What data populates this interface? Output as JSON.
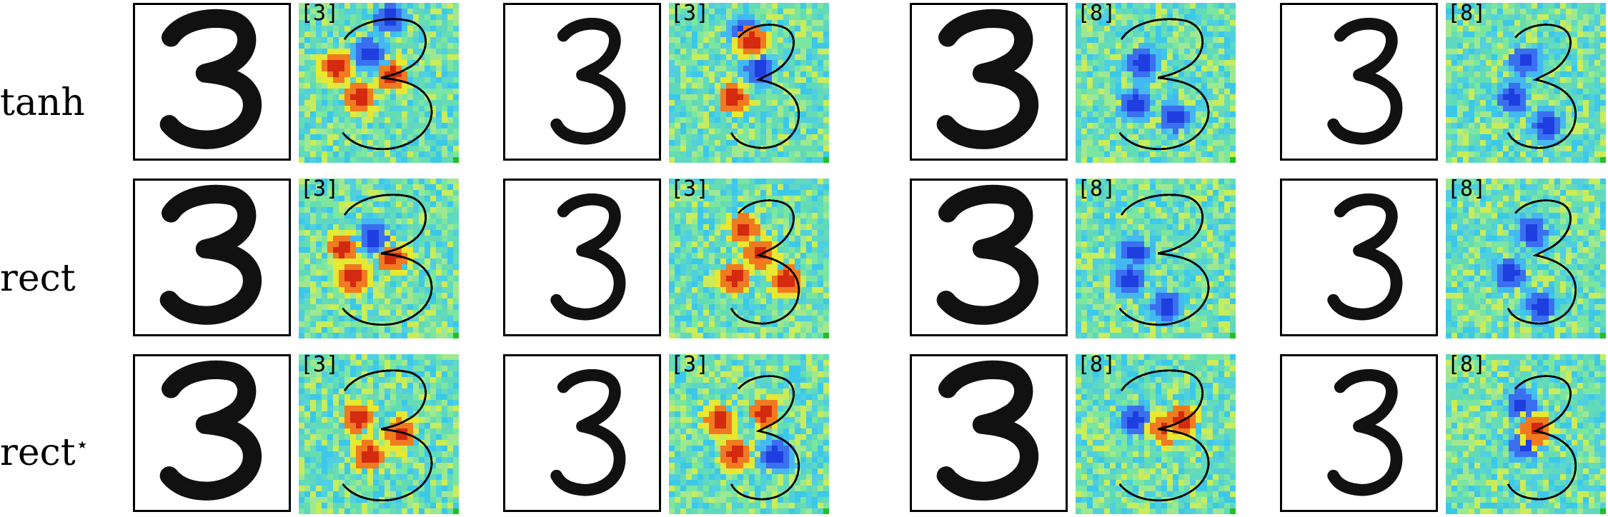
{
  "row_labels": [
    "tanh",
    "rect",
    "rect"
  ],
  "star_mark": "⋆",
  "rows": [
    {
      "name": "tanh",
      "panels": [
        {
          "class": "[3]",
          "stroke": "thick",
          "hot": "red",
          "blobs": [
            [
              0.22,
              0.38,
              "r"
            ],
            [
              0.36,
              0.57,
              "r"
            ],
            [
              0.56,
              0.44,
              "r"
            ],
            [
              0.42,
              0.3,
              "b"
            ],
            [
              0.55,
              0.08,
              "b"
            ]
          ]
        },
        {
          "class": "[3]",
          "stroke": "thin",
          "hot": "red",
          "blobs": [
            [
              0.45,
              0.18,
              "b"
            ],
            [
              0.55,
              0.4,
              "b"
            ],
            [
              0.38,
              0.58,
              "r"
            ],
            [
              0.5,
              0.22,
              "r"
            ]
          ]
        },
        {
          "class": "[8]",
          "stroke": "thick",
          "hot": "blue",
          "blobs": [
            [
              0.4,
              0.36,
              "b"
            ],
            [
              0.36,
              0.62,
              "b"
            ],
            [
              0.6,
              0.7,
              "b"
            ]
          ]
        },
        {
          "class": "[8]",
          "stroke": "thin",
          "hot": "blue",
          "blobs": [
            [
              0.48,
              0.34,
              "b"
            ],
            [
              0.4,
              0.58,
              "b"
            ],
            [
              0.62,
              0.75,
              "b"
            ]
          ]
        }
      ]
    },
    {
      "name": "rect",
      "panels": [
        {
          "class": "[3]",
          "stroke": "thick",
          "hot": "red",
          "blobs": [
            [
              0.26,
              0.42,
              "r"
            ],
            [
              0.56,
              0.48,
              "r"
            ],
            [
              0.32,
              0.6,
              "r"
            ],
            [
              0.45,
              0.35,
              "b"
            ]
          ]
        },
        {
          "class": "[3]",
          "stroke": "thin",
          "hot": "red",
          "blobs": [
            [
              0.45,
              0.3,
              "r"
            ],
            [
              0.55,
              0.45,
              "r"
            ],
            [
              0.4,
              0.6,
              "r"
            ],
            [
              0.72,
              0.62,
              "r"
            ]
          ]
        },
        {
          "class": "[8]",
          "stroke": "thick",
          "hot": "blue",
          "blobs": [
            [
              0.35,
              0.45,
              "b"
            ],
            [
              0.32,
              0.62,
              "b"
            ],
            [
              0.55,
              0.78,
              "b"
            ]
          ]
        },
        {
          "class": "[8]",
          "stroke": "thin",
          "hot": "blue",
          "blobs": [
            [
              0.52,
              0.32,
              "b"
            ],
            [
              0.38,
              0.58,
              "b"
            ],
            [
              0.58,
              0.78,
              "b"
            ]
          ]
        }
      ]
    },
    {
      "name": "rect*",
      "panels": [
        {
          "class": "[3]",
          "stroke": "thick",
          "hot": "red",
          "blobs": [
            [
              0.35,
              0.38,
              "r"
            ],
            [
              0.42,
              0.62,
              "r"
            ],
            [
              0.62,
              0.48,
              "r"
            ]
          ]
        },
        {
          "class": "[3]",
          "stroke": "thin",
          "hot": "red",
          "blobs": [
            [
              0.4,
              0.6,
              "r"
            ],
            [
              0.58,
              0.35,
              "r"
            ],
            [
              0.3,
              0.4,
              "r"
            ],
            [
              0.65,
              0.62,
              "b"
            ]
          ]
        },
        {
          "class": "[8]",
          "stroke": "thick",
          "hot": "blue",
          "blobs": [
            [
              0.35,
              0.4,
              "b"
            ],
            [
              0.55,
              0.45,
              "r"
            ],
            [
              0.65,
              0.4,
              "r"
            ]
          ]
        },
        {
          "class": "[8]",
          "stroke": "thin",
          "hot": "blue",
          "blobs": [
            [
              0.45,
              0.3,
              "b"
            ],
            [
              0.48,
              0.55,
              "b"
            ],
            [
              0.55,
              0.45,
              "r"
            ]
          ]
        }
      ]
    }
  ],
  "colors": {
    "background": "#6fe0a6",
    "cyan": "#3fd6e6",
    "yellow": "#e6e832",
    "red": "#d42a10",
    "blue": "#1f3ee0",
    "corner": "#22c022"
  }
}
